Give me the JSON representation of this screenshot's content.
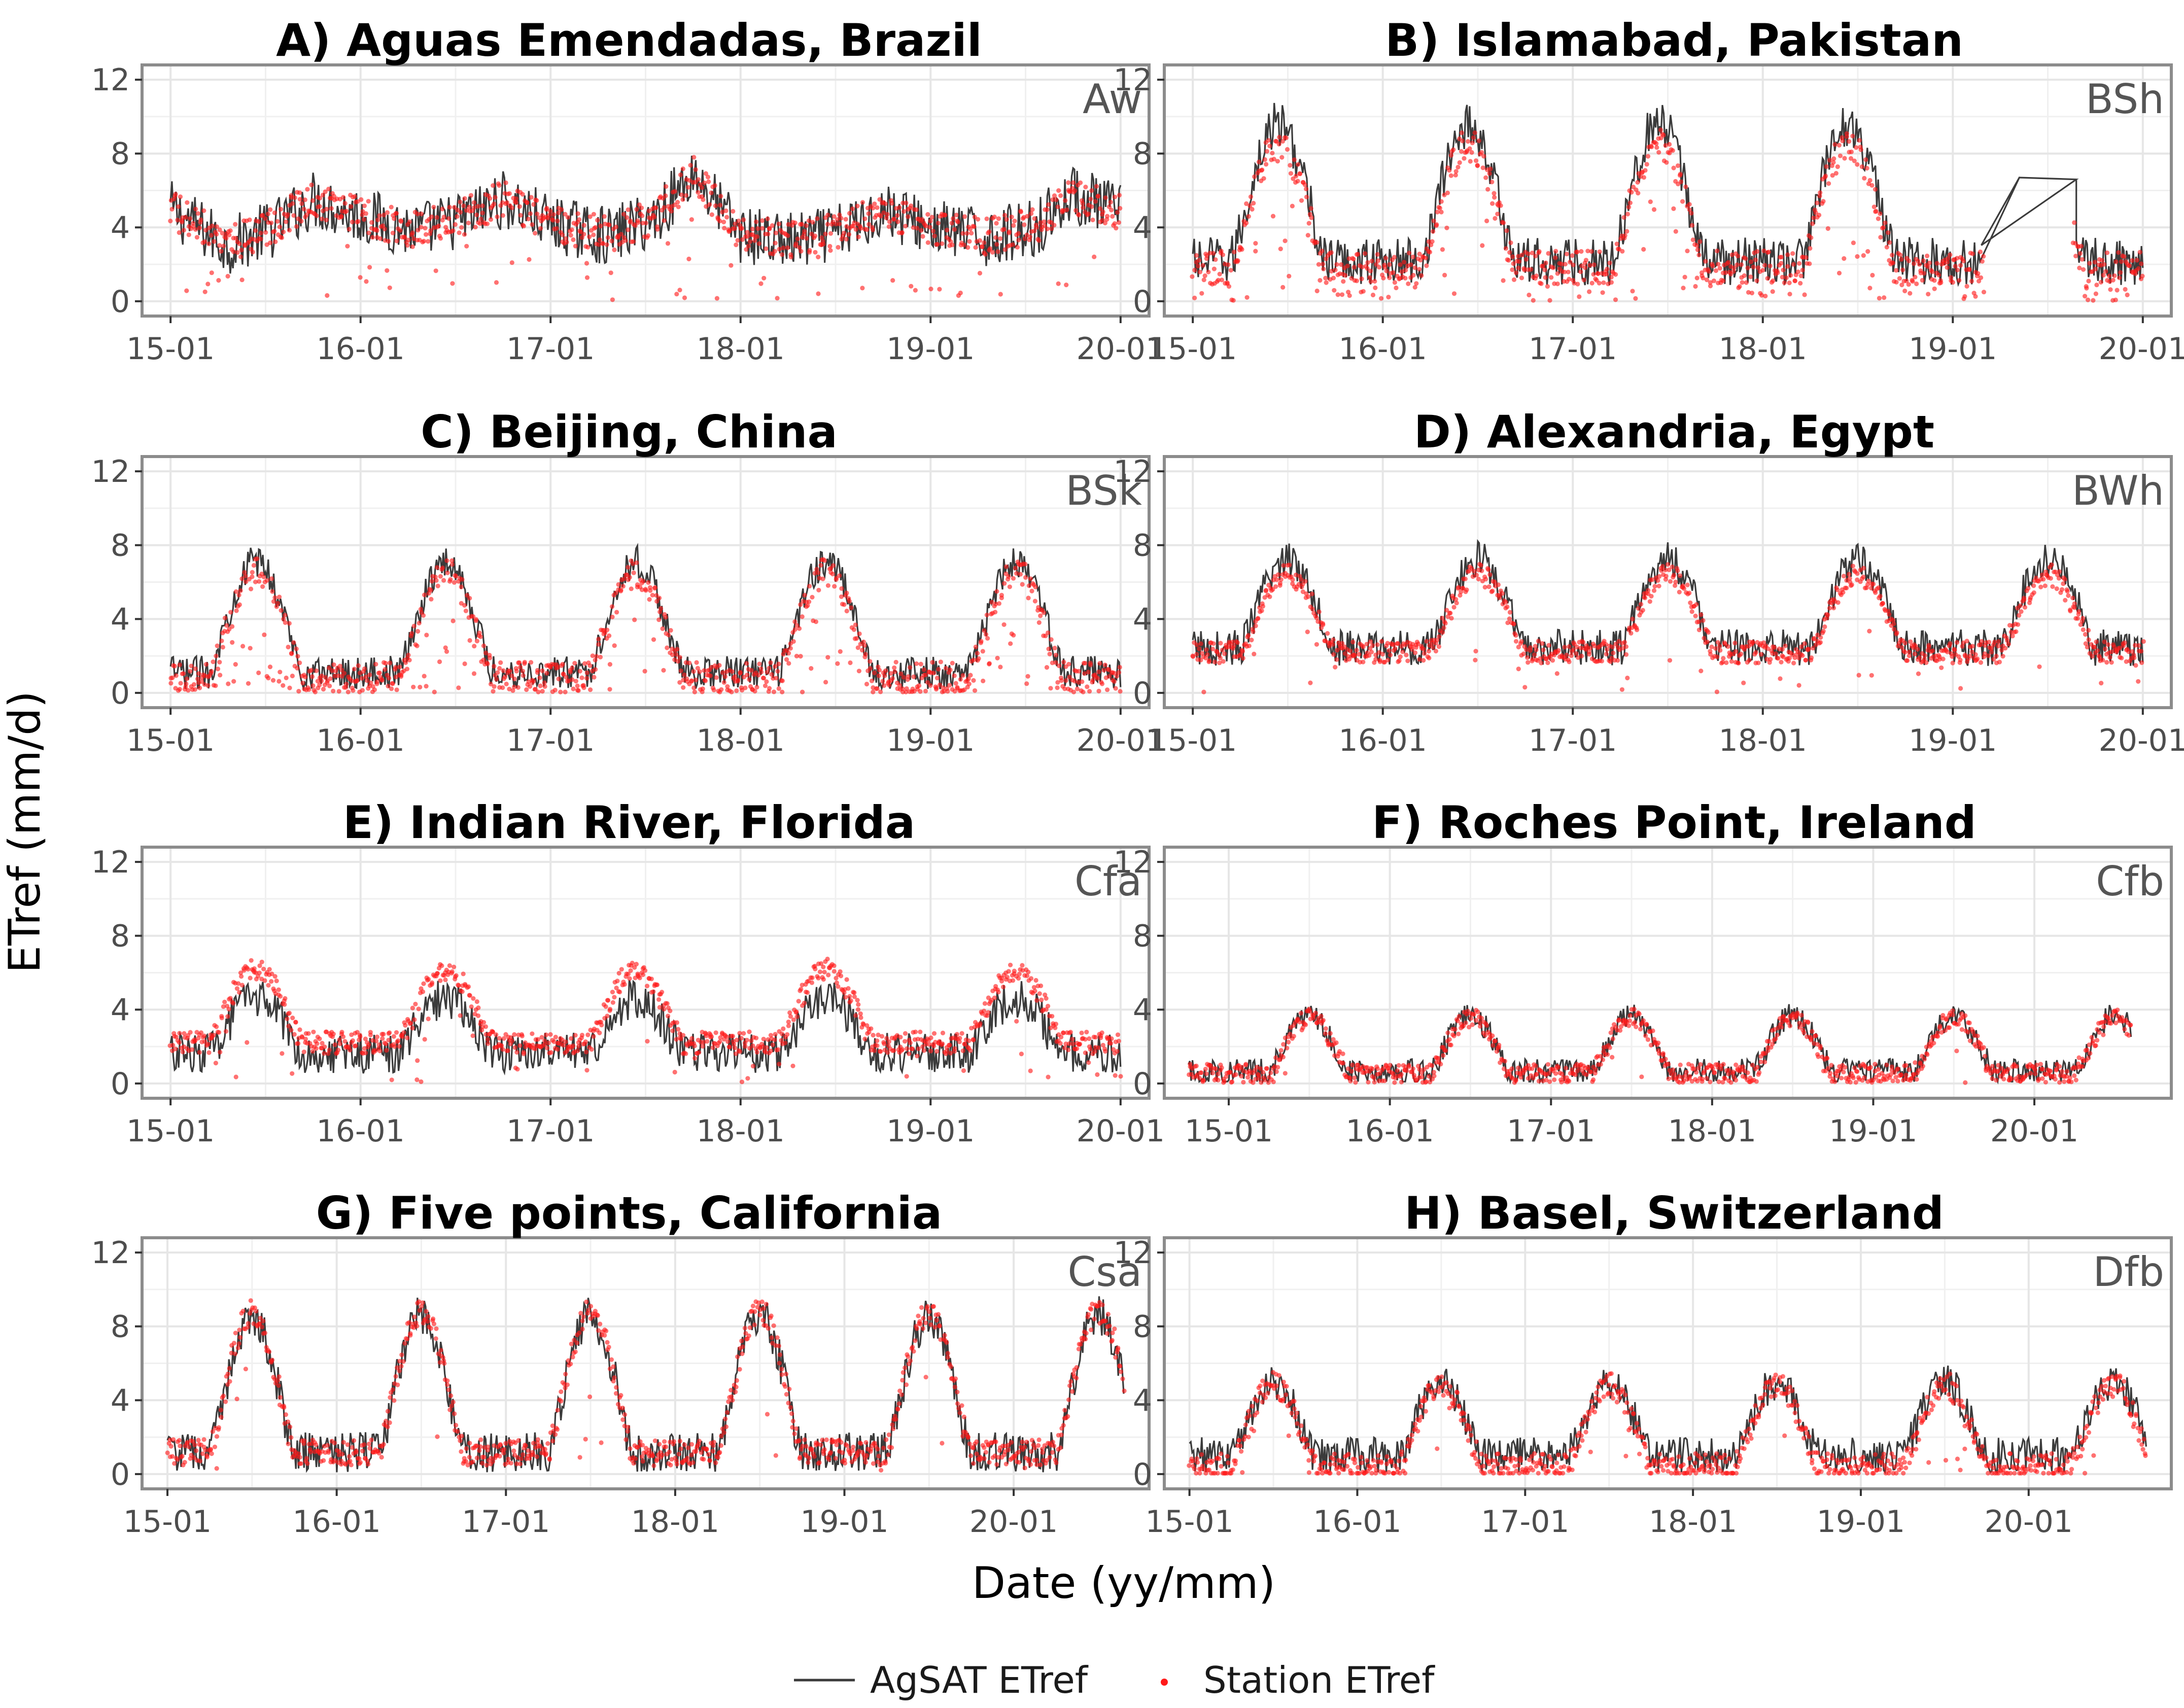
{
  "figure": {
    "ylabel": "ETref (mm/d)",
    "xlabel": "Date (yy/mm)",
    "legend": {
      "placement": "bottom-center",
      "agsat_label": "AgSAT ETref",
      "station_label": "Station ETref"
    },
    "colors": {
      "agsat": "#3b3b3b",
      "station": "#ff1a1a",
      "panel_border": "#8c8c8c",
      "grid": "#e6e6e6",
      "climate_text": "#555555"
    }
  },
  "chart_data": [
    {
      "type": "line",
      "title": "A) Aguas Emendadas, Brazil",
      "climate": "Aw",
      "xlabel": "Date (yy/mm)",
      "ylabel": "ETref (mm/d)",
      "ylim": [
        -0.8,
        12.8
      ],
      "yticks": [
        0,
        4,
        8,
        12
      ],
      "ytick_labels": [
        "0",
        "4",
        "8",
        "12"
      ],
      "xlim": [
        2014.85,
        2020.15
      ],
      "xticks": [
        2015,
        2016,
        2017,
        2018,
        2019,
        2020
      ],
      "xtick_labels": [
        "15-01",
        "16-01",
        "17-01",
        "18-01",
        "19-01",
        "20-01"
      ],
      "x_range": [
        2015.0,
        2020.0
      ],
      "series": [
        {
          "name": "AgSAT ETref",
          "kind": "line",
          "x": [
            2015.0,
            2015.3,
            2015.55,
            2015.75,
            2016.0,
            2016.3,
            2016.55,
            2016.75,
            2017.0,
            2017.3,
            2017.55,
            2017.75,
            2018.0,
            2018.3,
            2018.55,
            2018.75,
            2019.0,
            2019.3,
            2019.55,
            2019.75,
            2020.0
          ],
          "y": [
            5.0,
            3.0,
            4.0,
            5.5,
            4.6,
            3.8,
            4.5,
            5.5,
            4.2,
            3.5,
            4.5,
            7.0,
            3.6,
            3.2,
            3.8,
            5.0,
            4.0,
            3.4,
            4.0,
            5.8,
            4.8
          ],
          "noise": 1.6
        },
        {
          "name": "Station ETref",
          "kind": "points",
          "x": [
            2015.0,
            2015.3,
            2015.55,
            2015.75,
            2016.0,
            2016.3,
            2016.55,
            2016.75,
            2017.0,
            2017.3,
            2017.55,
            2017.75,
            2018.0,
            2018.3,
            2018.55,
            2018.75,
            2019.0,
            2019.3,
            2019.55,
            2019.75,
            2020.0
          ],
          "y": [
            5.0,
            3.1,
            4.1,
            5.6,
            4.6,
            3.9,
            4.6,
            5.6,
            4.2,
            3.6,
            4.6,
            7.0,
            3.7,
            3.3,
            3.9,
            5.0,
            4.1,
            3.5,
            4.1,
            5.8,
            4.8
          ],
          "noise": 1.0,
          "drop_prob": 0.05
        }
      ]
    },
    {
      "type": "line",
      "title": "B) Islamabad, Pakistan",
      "climate": "BSh",
      "xlabel": "Date (yy/mm)",
      "ylabel": "ETref (mm/d)",
      "ylim": [
        -0.8,
        12.8
      ],
      "yticks": [
        0,
        4,
        8,
        12
      ],
      "ytick_labels": [
        "0",
        "4",
        "8",
        "12"
      ],
      "xlim": [
        2014.85,
        2020.15
      ],
      "xticks": [
        2015,
        2016,
        2017,
        2018,
        2019,
        2020
      ],
      "xtick_labels": [
        "15-01",
        "16-01",
        "17-01",
        "18-01",
        "19-01",
        "20-01"
      ],
      "x_range": [
        2015.0,
        2020.0
      ],
      "gap": {
        "from": 2019.15,
        "to": 2019.65,
        "y_from": 2.0,
        "y_to": 6.6,
        "y_mid": 6.7,
        "x_mid": 2019.4
      },
      "series": [
        {
          "name": "AgSAT ETref",
          "kind": "seasonal",
          "base": 1.8,
          "amp": 7.4,
          "peak": 0.45,
          "noise": 1.3
        },
        {
          "name": "Station ETref",
          "kind": "seasonal_points",
          "base": 1.5,
          "amp": 6.6,
          "peak": 0.45,
          "noise": 0.9,
          "drop_prob": 0.14
        }
      ]
    },
    {
      "type": "line",
      "title": "C) Beijing, China",
      "climate": "BSk",
      "xlabel": "Date (yy/mm)",
      "ylabel": "ETref (mm/d)",
      "ylim": [
        -0.8,
        12.8
      ],
      "yticks": [
        0,
        4,
        8,
        12
      ],
      "ytick_labels": [
        "0",
        "4",
        "8",
        "12"
      ],
      "xlim": [
        2014.85,
        2020.15
      ],
      "xticks": [
        2015,
        2016,
        2017,
        2018,
        2019,
        2020
      ],
      "xtick_labels": [
        "15-01",
        "16-01",
        "17-01",
        "18-01",
        "19-01",
        "20-01"
      ],
      "x_range": [
        2015.0,
        2020.0
      ],
      "series": [
        {
          "name": "AgSAT ETref",
          "kind": "seasonal",
          "base": 0.8,
          "amp": 6.0,
          "peak": 0.45,
          "noise": 0.9
        },
        {
          "name": "Station ETref",
          "kind": "seasonal_points",
          "base": 0.6,
          "amp": 5.6,
          "peak": 0.45,
          "noise": 0.8,
          "drop_prob": 0.2
        }
      ]
    },
    {
      "type": "line",
      "title": "D) Alexandria, Egypt",
      "climate": "BWh",
      "xlabel": "Date (yy/mm)",
      "ylabel": "ETref (mm/d)",
      "ylim": [
        -0.8,
        12.8
      ],
      "yticks": [
        0,
        4,
        8,
        12
      ],
      "ytick_labels": [
        "0",
        "4",
        "8",
        "12"
      ],
      "xlim": [
        2014.85,
        2020.15
      ],
      "xticks": [
        2015,
        2016,
        2017,
        2018,
        2019,
        2020
      ],
      "xtick_labels": [
        "15-01",
        "16-01",
        "17-01",
        "18-01",
        "19-01",
        "20-01"
      ],
      "x_range": [
        2015.0,
        2020.0
      ],
      "series": [
        {
          "name": "AgSAT ETref",
          "kind": "seasonal",
          "base": 2.2,
          "amp": 4.8,
          "peak": 0.5,
          "noise": 1.0
        },
        {
          "name": "Station ETref",
          "kind": "seasonal_points",
          "base": 2.0,
          "amp": 4.2,
          "peak": 0.5,
          "noise": 0.6,
          "drop_prob": 0.03
        }
      ]
    },
    {
      "type": "line",
      "title": "E) Indian River, Florida",
      "climate": "Cfa",
      "xlabel": "Date (yy/mm)",
      "ylabel": "ETref (mm/d)",
      "ylim": [
        -0.8,
        12.8
      ],
      "yticks": [
        0,
        4,
        8,
        12
      ],
      "ytick_labels": [
        "0",
        "4",
        "8",
        "12"
      ],
      "xlim": [
        2014.85,
        2020.15
      ],
      "xticks": [
        2015,
        2016,
        2017,
        2018,
        2019,
        2020
      ],
      "xtick_labels": [
        "15-01",
        "16-01",
        "17-01",
        "18-01",
        "19-01",
        "20-01"
      ],
      "x_range": [
        2015.0,
        2020.0
      ],
      "series": [
        {
          "name": "AgSAT ETref",
          "kind": "seasonal",
          "base": 1.5,
          "amp": 3.0,
          "peak": 0.45,
          "noise": 1.1
        },
        {
          "name": "Station ETref",
          "kind": "seasonal_points",
          "base": 2.0,
          "amp": 4.0,
          "peak": 0.45,
          "noise": 0.6,
          "drop_prob": 0.04
        }
      ]
    },
    {
      "type": "line",
      "title": "F) Roches Point, Ireland",
      "climate": "Cfb",
      "xlabel": "Date (yy/mm)",
      "ylabel": "ETref (mm/d)",
      "ylim": [
        -0.8,
        12.8
      ],
      "yticks": [
        0,
        4,
        8,
        12
      ],
      "ytick_labels": [
        "0",
        "4",
        "8",
        "12"
      ],
      "xlim": [
        2014.6,
        2020.85
      ],
      "xticks": [
        2015,
        2016,
        2017,
        2018,
        2019,
        2020
      ],
      "xtick_labels": [
        "15-01",
        "16-01",
        "17-01",
        "18-01",
        "19-01",
        "20-01"
      ],
      "x_range": [
        2014.75,
        2020.6
      ],
      "series": [
        {
          "name": "AgSAT ETref",
          "kind": "seasonal",
          "base": 0.5,
          "amp": 3.0,
          "peak": 0.5,
          "noise": 0.7
        },
        {
          "name": "Station ETref",
          "kind": "seasonal_points",
          "base": 0.4,
          "amp": 3.0,
          "peak": 0.5,
          "noise": 0.5,
          "drop_prob": 0.02
        }
      ]
    },
    {
      "type": "line",
      "title": "G) Five points, California",
      "climate": "Csa",
      "xlabel": "Date (yy/mm)",
      "ylabel": "ETref (mm/d)",
      "ylim": [
        -0.8,
        12.8
      ],
      "yticks": [
        0,
        4,
        8,
        12
      ],
      "ytick_labels": [
        "0",
        "4",
        "8",
        "12"
      ],
      "xlim": [
        2014.85,
        2020.8
      ],
      "xticks": [
        2015,
        2016,
        2017,
        2018,
        2019,
        2020
      ],
      "xtick_labels": [
        "15-01",
        "16-01",
        "17-01",
        "18-01",
        "19-01",
        "20-01"
      ],
      "x_range": [
        2015.0,
        2020.65
      ],
      "series": [
        {
          "name": "AgSAT ETref",
          "kind": "seasonal",
          "base": 0.8,
          "amp": 7.4,
          "peak": 0.5,
          "noise": 1.1
        },
        {
          "name": "Station ETref",
          "kind": "seasonal_points",
          "base": 0.8,
          "amp": 7.6,
          "peak": 0.5,
          "noise": 0.7,
          "drop_prob": 0.03
        }
      ]
    },
    {
      "type": "line",
      "title": "H) Basel, Switzerland",
      "climate": "Dfb",
      "xlabel": "Date (yy/mm)",
      "ylabel": "ETref (mm/d)",
      "ylim": [
        -0.8,
        12.8
      ],
      "yticks": [
        0,
        4,
        8,
        12
      ],
      "ytick_labels": [
        "0",
        "4",
        "8",
        "12"
      ],
      "xlim": [
        2014.85,
        2020.85
      ],
      "xticks": [
        2015,
        2016,
        2017,
        2018,
        2019,
        2020
      ],
      "xtick_labels": [
        "15-01",
        "16-01",
        "17-01",
        "18-01",
        "19-01",
        "20-01"
      ],
      "x_range": [
        2015.0,
        2020.7
      ],
      "series": [
        {
          "name": "AgSAT ETref",
          "kind": "seasonal",
          "base": 0.8,
          "amp": 4.0,
          "peak": 0.5,
          "noise": 1.0
        },
        {
          "name": "Station ETref",
          "kind": "seasonal_points",
          "base": 0.2,
          "amp": 4.4,
          "peak": 0.5,
          "noise": 0.7,
          "drop_prob": 0.05
        }
      ]
    }
  ]
}
